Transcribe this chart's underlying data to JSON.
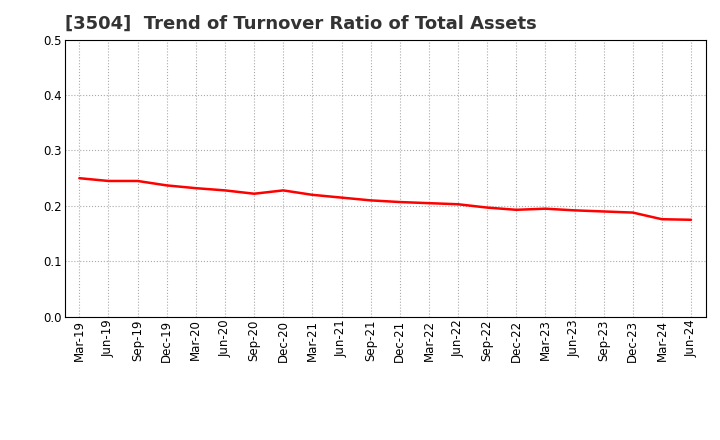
{
  "title": "[3504]  Trend of Turnover Ratio of Total Assets",
  "x_labels": [
    "Mar-19",
    "Jun-19",
    "Sep-19",
    "Dec-19",
    "Mar-20",
    "Jun-20",
    "Sep-20",
    "Dec-20",
    "Mar-21",
    "Jun-21",
    "Sep-21",
    "Dec-21",
    "Mar-22",
    "Jun-22",
    "Sep-22",
    "Dec-22",
    "Mar-23",
    "Jun-23",
    "Sep-23",
    "Dec-23",
    "Mar-24",
    "Jun-24"
  ],
  "y_values": [
    0.25,
    0.245,
    0.245,
    0.237,
    0.232,
    0.228,
    0.222,
    0.228,
    0.22,
    0.215,
    0.21,
    0.207,
    0.205,
    0.203,
    0.197,
    0.193,
    0.195,
    0.192,
    0.19,
    0.188,
    0.176,
    0.175
  ],
  "line_color": "#FF0000",
  "line_width": 1.8,
  "ylim": [
    0.0,
    0.5
  ],
  "yticks": [
    0.0,
    0.1,
    0.2,
    0.3,
    0.4,
    0.5
  ],
  "grid_color": "#AAAAAA",
  "bg_color": "#FFFFFF",
  "title_fontsize": 13,
  "tick_fontsize": 8.5
}
